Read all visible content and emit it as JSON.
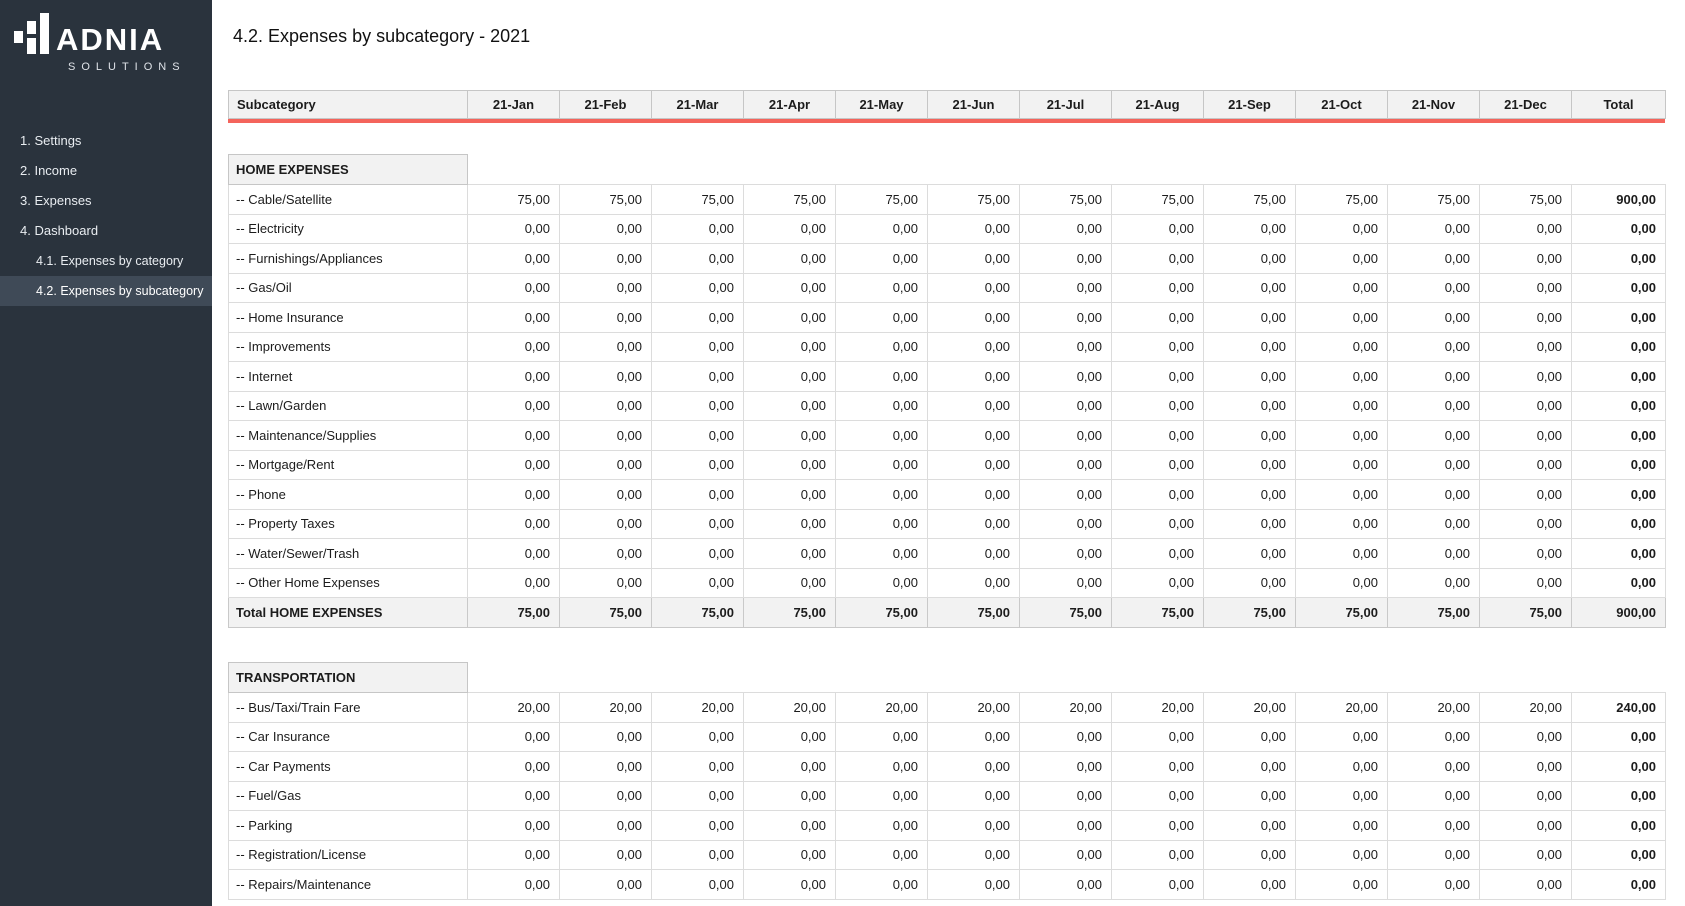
{
  "colors": {
    "sidebar_bg": "#2a333d",
    "sidebar_active_bg": "#3f4a57",
    "accent_red": "#f4645c",
    "header_cell_bg": "#f2f2f2",
    "grid_border": "#dcdcdc"
  },
  "sidebar": {
    "brand": "ADNIA",
    "tagline": "SOLUTIONS",
    "items": [
      {
        "id": "settings",
        "label": "1. Settings",
        "sub": false,
        "active": false
      },
      {
        "id": "income",
        "label": "2. Income",
        "sub": false,
        "active": false
      },
      {
        "id": "expenses",
        "label": "3. Expenses",
        "sub": false,
        "active": false
      },
      {
        "id": "dashboard",
        "label": "4. Dashboard",
        "sub": false,
        "active": false
      },
      {
        "id": "expenses-by-category",
        "label": "4.1. Expenses by category",
        "sub": true,
        "active": false
      },
      {
        "id": "expenses-by-subcategory",
        "label": "4.2. Expenses by subcategory",
        "sub": true,
        "active": true
      }
    ]
  },
  "page": {
    "title": "4.2. Expenses by subcategory - 2021"
  },
  "table": {
    "columns": [
      "Subcategory",
      "21-Jan",
      "21-Feb",
      "21-Mar",
      "21-Apr",
      "21-May",
      "21-Jun",
      "21-Jul",
      "21-Aug",
      "21-Sep",
      "21-Oct",
      "21-Nov",
      "21-Dec",
      "Total"
    ],
    "sections": [
      {
        "name": "HOME EXPENSES",
        "rows": [
          {
            "label": "-- Cable/Satellite",
            "values": [
              "75,00",
              "75,00",
              "75,00",
              "75,00",
              "75,00",
              "75,00",
              "75,00",
              "75,00",
              "75,00",
              "75,00",
              "75,00",
              "75,00"
            ],
            "total": "900,00"
          },
          {
            "label": "-- Electricity",
            "values": [
              "0,00",
              "0,00",
              "0,00",
              "0,00",
              "0,00",
              "0,00",
              "0,00",
              "0,00",
              "0,00",
              "0,00",
              "0,00",
              "0,00"
            ],
            "total": "0,00"
          },
          {
            "label": "-- Furnishings/Appliances",
            "values": [
              "0,00",
              "0,00",
              "0,00",
              "0,00",
              "0,00",
              "0,00",
              "0,00",
              "0,00",
              "0,00",
              "0,00",
              "0,00",
              "0,00"
            ],
            "total": "0,00"
          },
          {
            "label": "-- Gas/Oil",
            "values": [
              "0,00",
              "0,00",
              "0,00",
              "0,00",
              "0,00",
              "0,00",
              "0,00",
              "0,00",
              "0,00",
              "0,00",
              "0,00",
              "0,00"
            ],
            "total": "0,00"
          },
          {
            "label": "-- Home Insurance",
            "values": [
              "0,00",
              "0,00",
              "0,00",
              "0,00",
              "0,00",
              "0,00",
              "0,00",
              "0,00",
              "0,00",
              "0,00",
              "0,00",
              "0,00"
            ],
            "total": "0,00"
          },
          {
            "label": "-- Improvements",
            "values": [
              "0,00",
              "0,00",
              "0,00",
              "0,00",
              "0,00",
              "0,00",
              "0,00",
              "0,00",
              "0,00",
              "0,00",
              "0,00",
              "0,00"
            ],
            "total": "0,00"
          },
          {
            "label": "-- Internet",
            "values": [
              "0,00",
              "0,00",
              "0,00",
              "0,00",
              "0,00",
              "0,00",
              "0,00",
              "0,00",
              "0,00",
              "0,00",
              "0,00",
              "0,00"
            ],
            "total": "0,00"
          },
          {
            "label": "-- Lawn/Garden",
            "values": [
              "0,00",
              "0,00",
              "0,00",
              "0,00",
              "0,00",
              "0,00",
              "0,00",
              "0,00",
              "0,00",
              "0,00",
              "0,00",
              "0,00"
            ],
            "total": "0,00"
          },
          {
            "label": "-- Maintenance/Supplies",
            "values": [
              "0,00",
              "0,00",
              "0,00",
              "0,00",
              "0,00",
              "0,00",
              "0,00",
              "0,00",
              "0,00",
              "0,00",
              "0,00",
              "0,00"
            ],
            "total": "0,00"
          },
          {
            "label": "-- Mortgage/Rent",
            "values": [
              "0,00",
              "0,00",
              "0,00",
              "0,00",
              "0,00",
              "0,00",
              "0,00",
              "0,00",
              "0,00",
              "0,00",
              "0,00",
              "0,00"
            ],
            "total": "0,00"
          },
          {
            "label": "-- Phone",
            "values": [
              "0,00",
              "0,00",
              "0,00",
              "0,00",
              "0,00",
              "0,00",
              "0,00",
              "0,00",
              "0,00",
              "0,00",
              "0,00",
              "0,00"
            ],
            "total": "0,00"
          },
          {
            "label": "-- Property Taxes",
            "values": [
              "0,00",
              "0,00",
              "0,00",
              "0,00",
              "0,00",
              "0,00",
              "0,00",
              "0,00",
              "0,00",
              "0,00",
              "0,00",
              "0,00"
            ],
            "total": "0,00"
          },
          {
            "label": "-- Water/Sewer/Trash",
            "values": [
              "0,00",
              "0,00",
              "0,00",
              "0,00",
              "0,00",
              "0,00",
              "0,00",
              "0,00",
              "0,00",
              "0,00",
              "0,00",
              "0,00"
            ],
            "total": "0,00"
          },
          {
            "label": "-- Other Home Expenses",
            "values": [
              "0,00",
              "0,00",
              "0,00",
              "0,00",
              "0,00",
              "0,00",
              "0,00",
              "0,00",
              "0,00",
              "0,00",
              "0,00",
              "0,00"
            ],
            "total": "0,00"
          }
        ],
        "total_row": {
          "label": "Total HOME EXPENSES",
          "values": [
            "75,00",
            "75,00",
            "75,00",
            "75,00",
            "75,00",
            "75,00",
            "75,00",
            "75,00",
            "75,00",
            "75,00",
            "75,00",
            "75,00"
          ],
          "total": "900,00"
        }
      },
      {
        "name": "TRANSPORTATION",
        "rows": [
          {
            "label": "-- Bus/Taxi/Train Fare",
            "values": [
              "20,00",
              "20,00",
              "20,00",
              "20,00",
              "20,00",
              "20,00",
              "20,00",
              "20,00",
              "20,00",
              "20,00",
              "20,00",
              "20,00"
            ],
            "total": "240,00"
          },
          {
            "label": "-- Car Insurance",
            "values": [
              "0,00",
              "0,00",
              "0,00",
              "0,00",
              "0,00",
              "0,00",
              "0,00",
              "0,00",
              "0,00",
              "0,00",
              "0,00",
              "0,00"
            ],
            "total": "0,00"
          },
          {
            "label": "-- Car Payments",
            "values": [
              "0,00",
              "0,00",
              "0,00",
              "0,00",
              "0,00",
              "0,00",
              "0,00",
              "0,00",
              "0,00",
              "0,00",
              "0,00",
              "0,00"
            ],
            "total": "0,00"
          },
          {
            "label": "-- Fuel/Gas",
            "values": [
              "0,00",
              "0,00",
              "0,00",
              "0,00",
              "0,00",
              "0,00",
              "0,00",
              "0,00",
              "0,00",
              "0,00",
              "0,00",
              "0,00"
            ],
            "total": "0,00"
          },
          {
            "label": "-- Parking",
            "values": [
              "0,00",
              "0,00",
              "0,00",
              "0,00",
              "0,00",
              "0,00",
              "0,00",
              "0,00",
              "0,00",
              "0,00",
              "0,00",
              "0,00"
            ],
            "total": "0,00"
          },
          {
            "label": "-- Registration/License",
            "values": [
              "0,00",
              "0,00",
              "0,00",
              "0,00",
              "0,00",
              "0,00",
              "0,00",
              "0,00",
              "0,00",
              "0,00",
              "0,00",
              "0,00"
            ],
            "total": "0,00"
          },
          {
            "label": "-- Repairs/Maintenance",
            "values": [
              "0,00",
              "0,00",
              "0,00",
              "0,00",
              "0,00",
              "0,00",
              "0,00",
              "0,00",
              "0,00",
              "0,00",
              "0,00",
              "0,00"
            ],
            "total": "0,00"
          }
        ],
        "total_row": null
      }
    ]
  }
}
